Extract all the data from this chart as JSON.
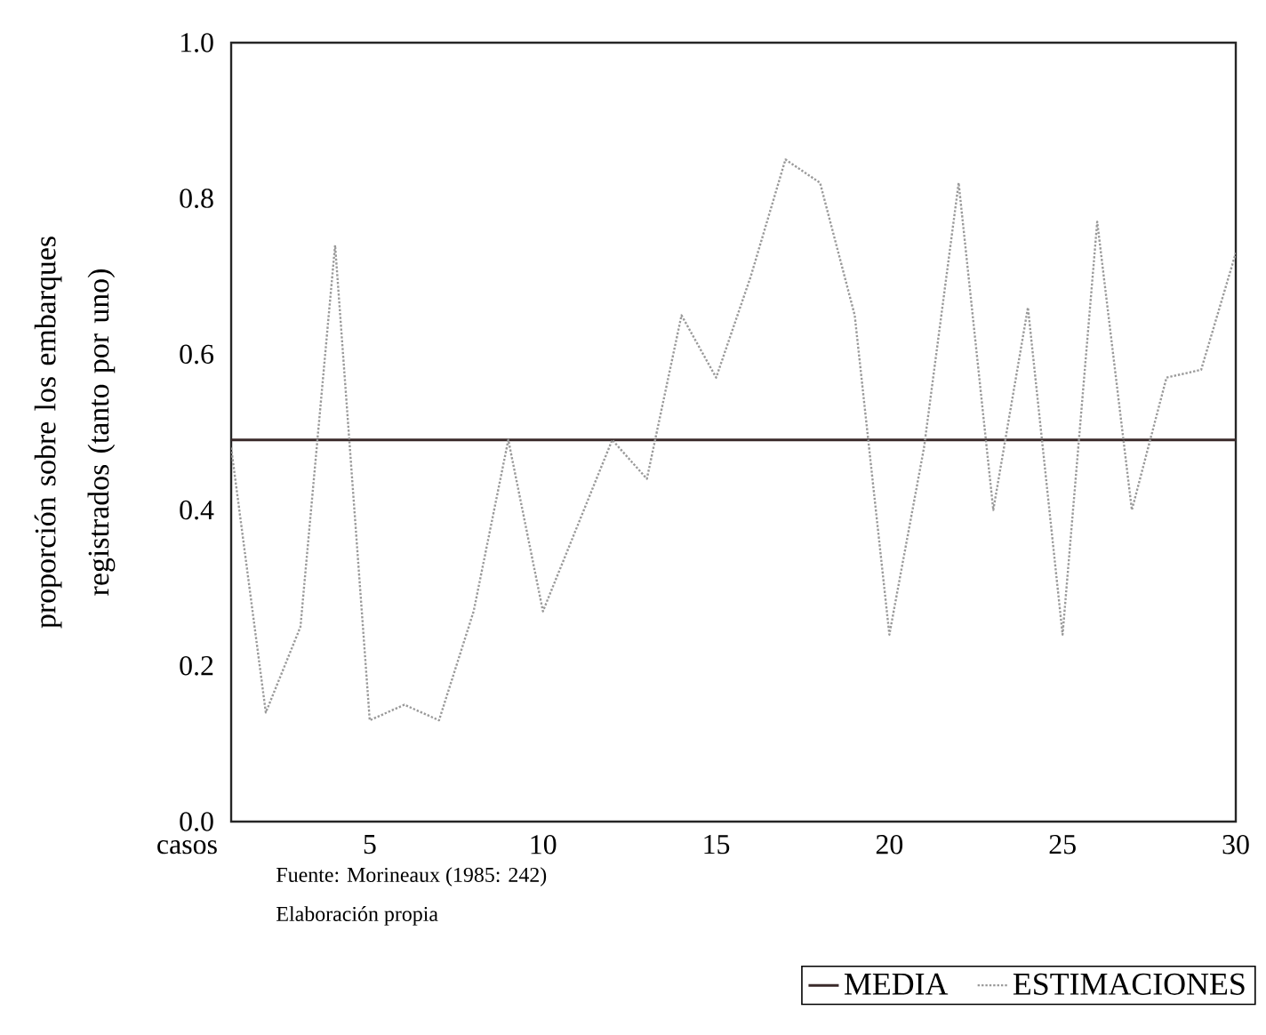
{
  "chart_data": {
    "type": "line",
    "xlabel": "casos",
    "ylabel": "proporción sobre los embarques registrados (tanto por uno)",
    "xlim": [
      1,
      30
    ],
    "ylim": [
      0,
      1
    ],
    "xticks": [
      5,
      10,
      15,
      20,
      25,
      30
    ],
    "yticks": [
      {
        "value": 0,
        "label": "0.0"
      },
      {
        "value": 0.2,
        "label": "0.2"
      },
      {
        "value": 0.4,
        "label": "0.4"
      },
      {
        "value": 0.6,
        "label": "0.6"
      },
      {
        "value": 0.8,
        "label": "0.8"
      },
      {
        "value": 1,
        "label": "1.0"
      }
    ],
    "series": [
      {
        "name": "MEDIA",
        "color": "#3a2a2a",
        "line_style": "solid",
        "x": [
          1,
          30
        ],
        "values": [
          0.49,
          0.49
        ]
      },
      {
        "name": "ESTIMACIONES",
        "color": "#9a9a9a",
        "line_style": "dotted",
        "x": [
          1,
          2,
          3,
          4,
          5,
          6,
          7,
          8,
          9,
          10,
          11,
          12,
          13,
          14,
          15,
          16,
          17,
          18,
          19,
          20,
          21,
          22,
          23,
          24,
          25,
          26,
          27,
          28,
          29,
          30
        ],
        "values": [
          0.48,
          0.14,
          0.25,
          0.74,
          0.13,
          0.15,
          0.13,
          0.27,
          0.49,
          0.27,
          0.38,
          0.49,
          0.44,
          0.65,
          0.57,
          0.7,
          0.85,
          0.82,
          0.65,
          0.24,
          0.48,
          0.82,
          0.4,
          0.66,
          0.24,
          0.77,
          0.4,
          0.57,
          0.58,
          0.73
        ]
      }
    ],
    "grid": false,
    "legend": "bottom",
    "marker": "none",
    "annotations": [
      "Fuente: Morineaux (1985: 242)",
      "Elaboración propia"
    ]
  }
}
